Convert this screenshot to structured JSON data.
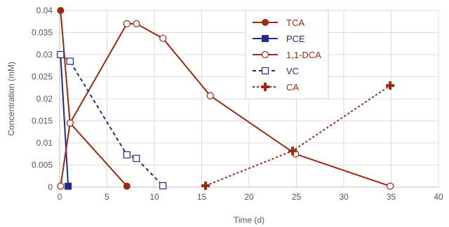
{
  "chart_data": {
    "type": "line",
    "xlabel": "Time (d)",
    "ylabel": "Concentration (mM)",
    "xlim": [
      0,
      40
    ],
    "ylim": [
      0,
      0.04
    ],
    "x_ticks": [
      "0",
      "5",
      "10",
      "15",
      "20",
      "25",
      "30",
      "35",
      "40"
    ],
    "y_ticks": [
      "0",
      "0.005",
      "0.01",
      "0.015",
      "0.02",
      "0.025",
      "0.03",
      "0.035",
      "0.04"
    ],
    "grid": true,
    "legend_position": "top-right",
    "series": [
      {
        "name": "TCA",
        "color": "#9a2a12",
        "marker": "filled-circle",
        "line": "solid",
        "points": [
          [
            0.1,
            0.04
          ],
          [
            1.1,
            0.0145
          ],
          [
            7.1,
            0.0002
          ]
        ]
      },
      {
        "name": "PCE",
        "color": "#1f2d8a",
        "marker": "filled-square",
        "line": "solid",
        "points": [
          [
            0.1,
            0.03
          ],
          [
            0.9,
            0.0002
          ]
        ]
      },
      {
        "name": "1,1-DCA",
        "color": "#9a2a12",
        "marker": "open-circle",
        "line": "solid",
        "points": [
          [
            0.1,
            0.0002
          ],
          [
            1.1,
            0.0145
          ],
          [
            7.1,
            0.037
          ],
          [
            8.1,
            0.037
          ],
          [
            10.9,
            0.0337
          ],
          [
            15.9,
            0.0207
          ],
          [
            24.9,
            0.0075
          ],
          [
            34.9,
            0.0002
          ]
        ]
      },
      {
        "name": "VC",
        "color": "#1f2d8a",
        "marker": "open-square",
        "line": "dashed",
        "points": [
          [
            0.1,
            0.03
          ],
          [
            1.1,
            0.0285
          ],
          [
            7.1,
            0.0073
          ],
          [
            8.1,
            0.0065
          ],
          [
            10.9,
            0.0003
          ]
        ]
      },
      {
        "name": "CA",
        "color": "#9a2a12",
        "marker": "plus",
        "line": "dotted",
        "points": [
          [
            15.4,
            0.0003
          ],
          [
            24.6,
            0.0082
          ],
          [
            34.9,
            0.023
          ]
        ]
      }
    ]
  }
}
